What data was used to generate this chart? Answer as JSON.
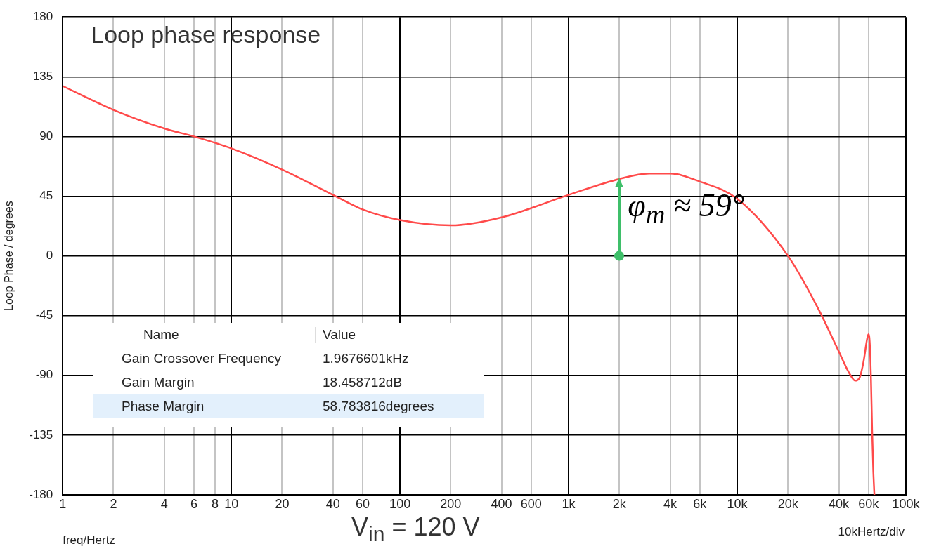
{
  "chart_data": {
    "type": "line",
    "title": "Loop phase response",
    "xlabel": "freq/Hertz",
    "ylabel": "Loop Phase / degrees",
    "x": [
      1,
      2,
      4,
      6,
      10,
      20,
      40,
      60,
      100,
      200,
      400,
      1000,
      2000,
      3000,
      4000,
      6000,
      10000,
      20000,
      30000,
      40000,
      46000,
      50000,
      53000,
      56000,
      59000,
      60000,
      61000,
      62000,
      63000,
      64000,
      65000
    ],
    "series": [
      {
        "color": "#ff4a4a",
        "values": [
          128,
          110,
          96,
          90,
          81,
          65,
          46,
          35,
          27,
          23,
          29,
          46,
          58,
          62,
          62,
          56,
          43,
          0,
          -39,
          -72,
          -88,
          -94,
          -92,
          -80,
          -62,
          -59,
          -65,
          -90,
          -130,
          -160,
          -180
        ]
      }
    ],
    "log": "x",
    "xlim": [
      1,
      100000
    ],
    "ylim": [
      -180,
      180
    ],
    "xticks": [
      1,
      2,
      4,
      6,
      8,
      10,
      20,
      40,
      60,
      {
        "value": 100,
        "label": "100"
      },
      200,
      400,
      600,
      {
        "value": 1000,
        "label": "1k"
      },
      {
        "value": 2000,
        "label": "2k"
      },
      {
        "value": 4000,
        "label": "4k"
      },
      {
        "value": 6000,
        "label": "6k"
      },
      {
        "value": 10000,
        "label": "10k"
      },
      {
        "value": 20000,
        "label": "20k"
      },
      {
        "value": 40000,
        "label": "40k"
      },
      {
        "value": 60000,
        "label": "60k"
      },
      {
        "value": 100000,
        "label": "100k"
      }
    ],
    "yticks": [
      -180,
      -135,
      -90,
      -45,
      0,
      45,
      90,
      135,
      180
    ],
    "grid": true,
    "legend": false,
    "marker": "none",
    "line_style": "solid",
    "annotations": [
      {
        "text": "φ$_{m}$ ≈ 59°",
        "x": 2000,
        "y": 59
      },
      "Name",
      "Value",
      "Gain Crossover Frequency",
      "1.9676601kHz",
      "Gain Margin",
      "18.458712dB",
      "Phase Margin",
      "58.783816degrees",
      "10kHertz/div",
      "V$_{in}$ = 120 V"
    ]
  }
}
